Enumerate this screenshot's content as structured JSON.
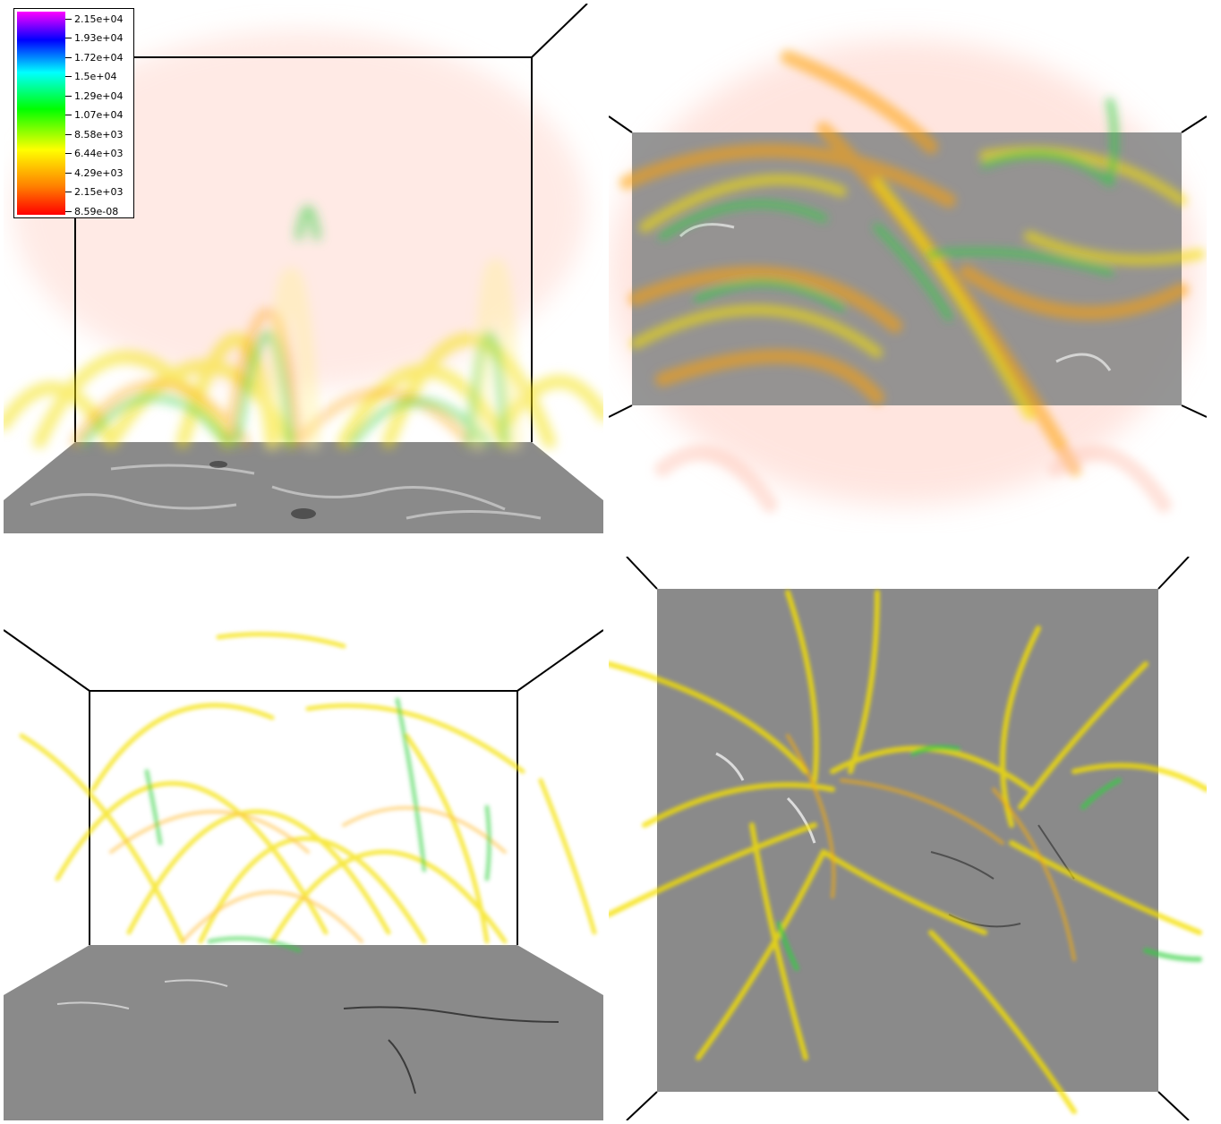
{
  "colorbar": {
    "labels": [
      "2.15e+04",
      "1.93e+04",
      "1.72e+04",
      "1.5e+04",
      "1.29e+04",
      "1.07e+04",
      "8.58e+03",
      "6.44e+03",
      "4.29e+03",
      "2.15e+03",
      "8.59e-08"
    ],
    "colors": [
      "#ff00ff",
      "#0000ff",
      "#00ffff",
      "#00ff00",
      "#ffff00",
      "#ff8000",
      "#ff0000"
    ]
  },
  "panels": [
    {
      "view": "side-perspective",
      "style": "dense-volume"
    },
    {
      "view": "top-down-tilted",
      "style": "dense-volume"
    },
    {
      "view": "side-perspective",
      "style": "sparse-strands"
    },
    {
      "view": "top-down",
      "style": "sparse-strands"
    }
  ],
  "colors": {
    "photosphere": "#8a8a8a",
    "strand_yellow": "#f5e000",
    "strand_orange": "#ffa000",
    "strand_green": "#30d040",
    "halo_pink": "#ffc8c0",
    "frame": "#000000"
  }
}
